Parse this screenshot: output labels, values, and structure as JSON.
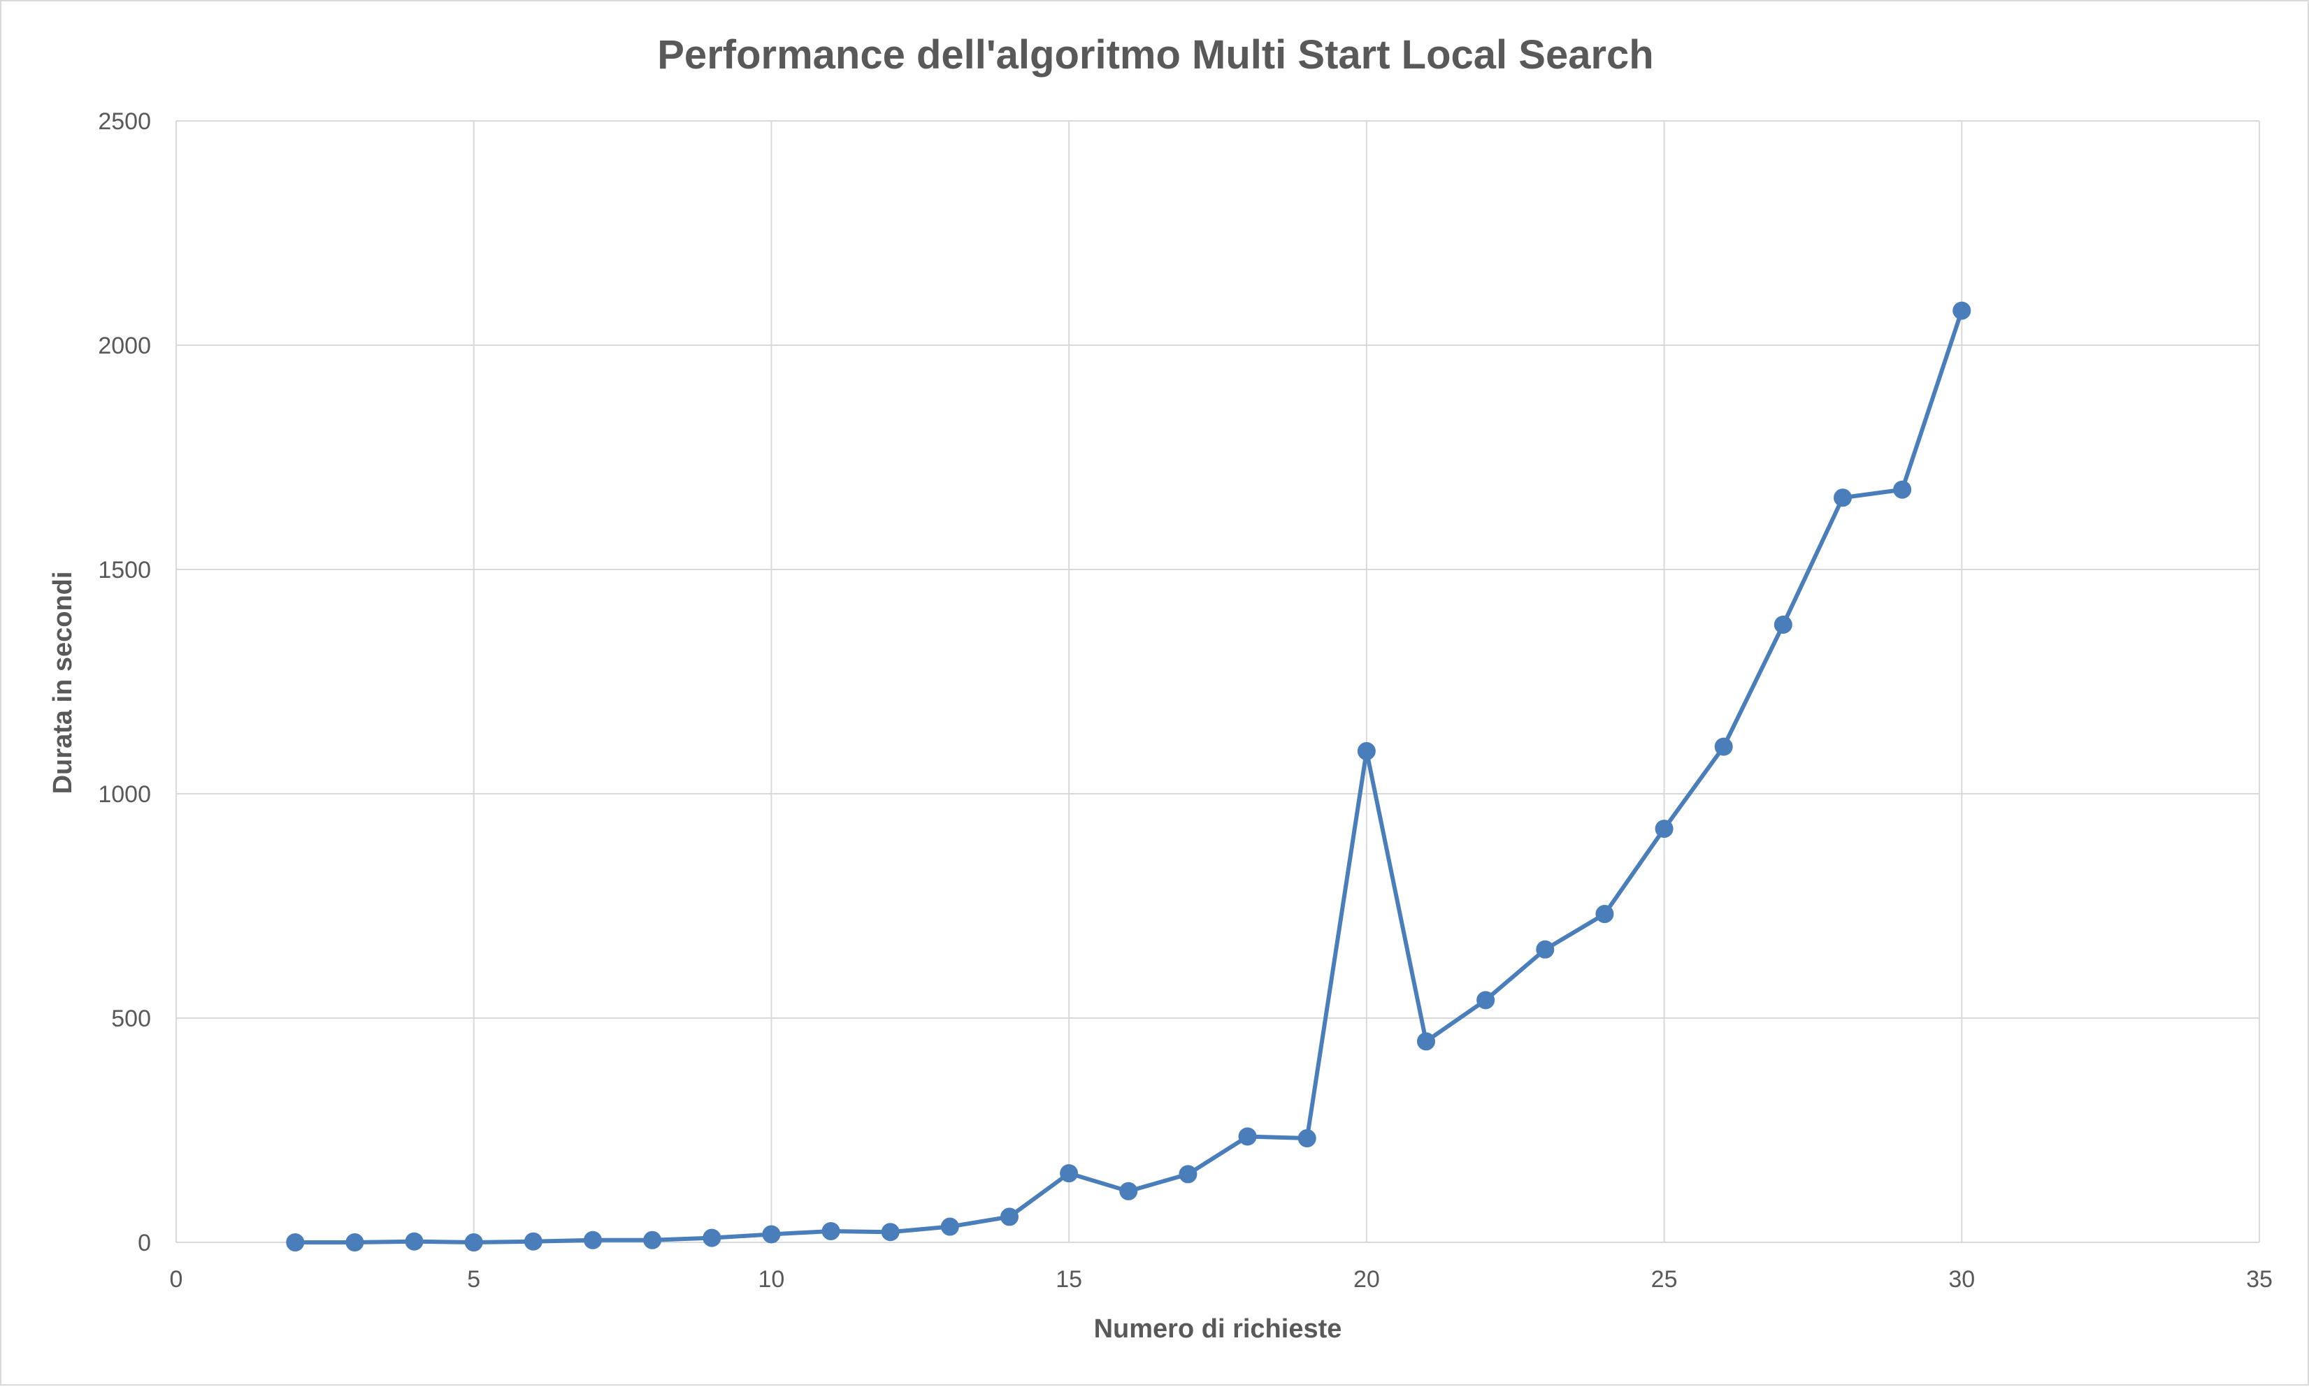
{
  "chart_data": {
    "type": "scatter",
    "title": "Performance dell'algoritmo Multi Start Local Search",
    "xlabel": "Numero di richieste",
    "ylabel": "Durata in secondi",
    "xlim": [
      0,
      35
    ],
    "ylim": [
      0,
      2500
    ],
    "x_ticks": [
      0,
      5,
      10,
      15,
      20,
      25,
      30,
      35
    ],
    "y_ticks": [
      0,
      500,
      1000,
      1500,
      2000,
      2500
    ],
    "grid": true,
    "legend": "none",
    "lines_connected": true,
    "markers": true,
    "series_color": "#4a7ebb",
    "series": [
      {
        "x": [
          2,
          3,
          4,
          5,
          6,
          7,
          8,
          9,
          10,
          11,
          12,
          13,
          14,
          15,
          16,
          17,
          18,
          19,
          20,
          21,
          22,
          23,
          24,
          25,
          26,
          27,
          28,
          29,
          30
        ],
        "y": [
          0,
          0,
          2,
          0,
          2,
          5,
          5,
          10,
          18,
          25,
          23,
          35,
          57,
          154,
          114,
          152,
          236,
          232,
          1095,
          448,
          540,
          653,
          732,
          922,
          1105,
          1377,
          1660,
          1678,
          2077
        ]
      }
    ]
  }
}
